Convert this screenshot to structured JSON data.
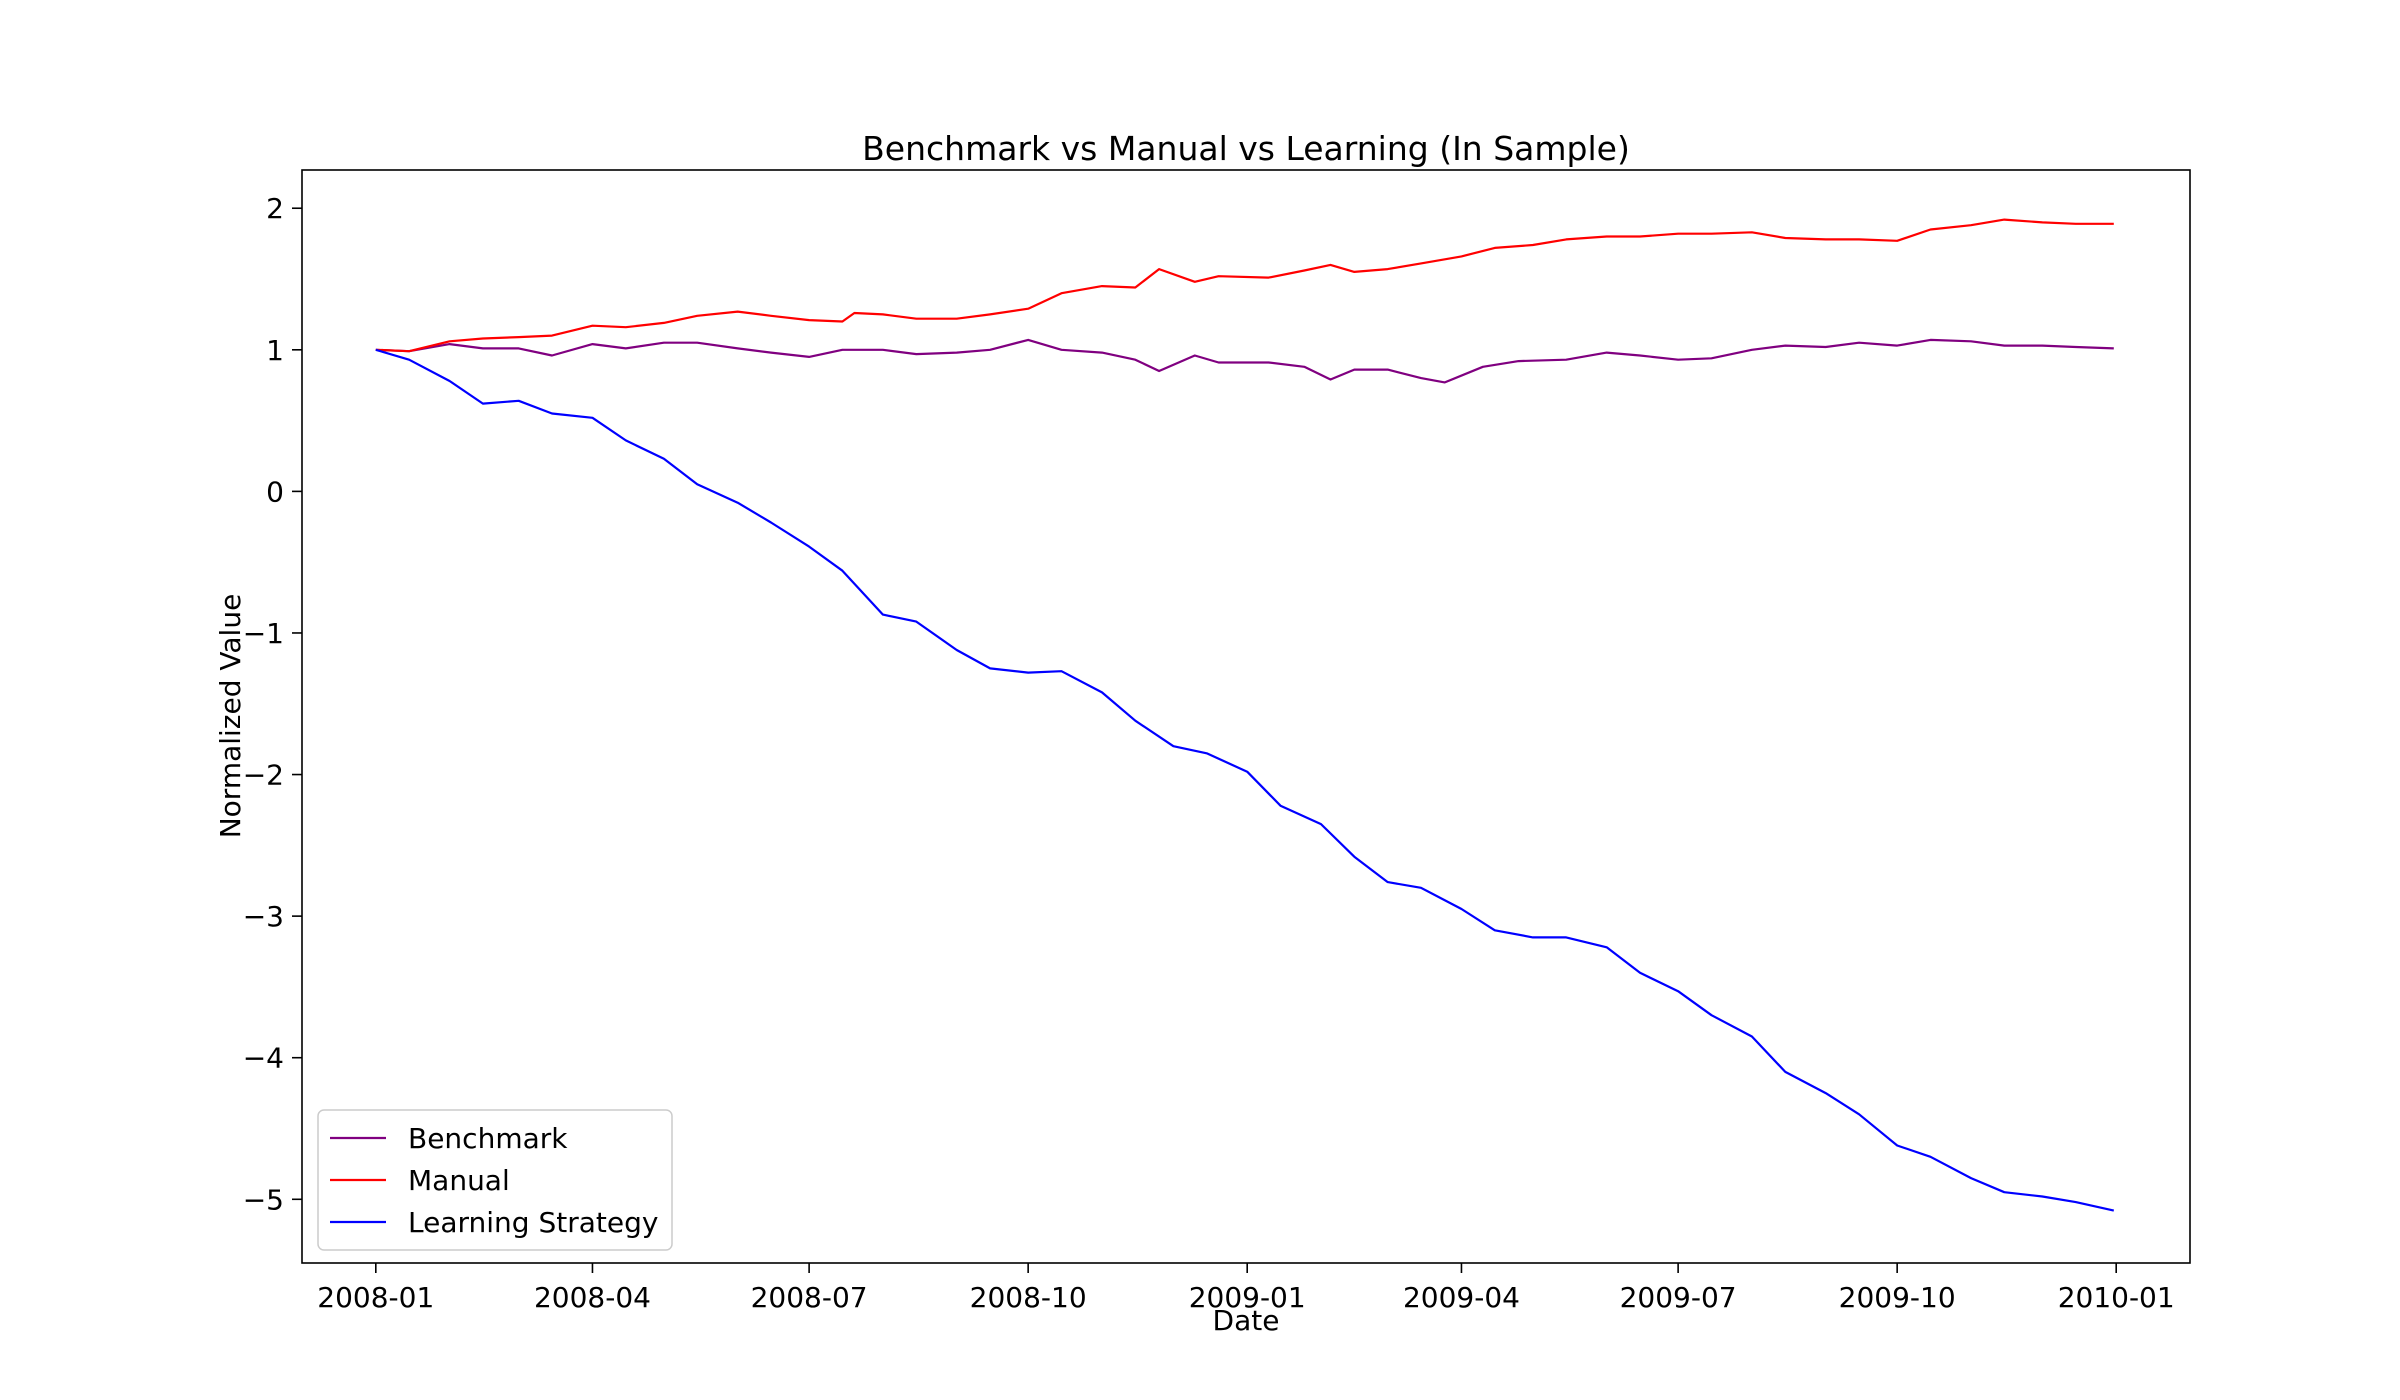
{
  "chart_data": {
    "type": "line",
    "title": "Benchmark vs Manual vs Learning (In Sample)",
    "xlabel": "Date",
    "ylabel": "Normalized Value",
    "xlim": [
      "2007-12-01",
      "2010-02-01"
    ],
    "ylim": [
      -5.45,
      2.27
    ],
    "x_ticks": [
      "2008-01",
      "2008-04",
      "2008-07",
      "2008-10",
      "2009-01",
      "2009-04",
      "2009-07",
      "2009-10",
      "2010-01"
    ],
    "y_ticks": [
      2,
      1,
      0,
      -1,
      -2,
      -3,
      -4,
      -5
    ],
    "y_tick_labels": [
      "2",
      "1",
      "0",
      "−1",
      "−2",
      "−3",
      "−4",
      "−5"
    ],
    "grid": false,
    "legend_position": "lower-left",
    "series": [
      {
        "name": "Benchmark",
        "color": "#800080",
        "points": [
          [
            "2008-01-01",
            1.0
          ],
          [
            "2008-01-15",
            0.99
          ],
          [
            "2008-02-01",
            1.04
          ],
          [
            "2008-02-15",
            1.01
          ],
          [
            "2008-03-01",
            1.01
          ],
          [
            "2008-03-15",
            0.96
          ],
          [
            "2008-04-01",
            1.04
          ],
          [
            "2008-04-15",
            1.01
          ],
          [
            "2008-05-01",
            1.05
          ],
          [
            "2008-05-15",
            1.05
          ],
          [
            "2008-06-01",
            1.01
          ],
          [
            "2008-06-15",
            0.98
          ],
          [
            "2008-07-01",
            0.95
          ],
          [
            "2008-07-15",
            1.0
          ],
          [
            "2008-08-01",
            1.0
          ],
          [
            "2008-08-15",
            0.97
          ],
          [
            "2008-09-01",
            0.98
          ],
          [
            "2008-09-15",
            1.0
          ],
          [
            "2008-10-01",
            1.07
          ],
          [
            "2008-10-15",
            1.0
          ],
          [
            "2008-11-01",
            0.98
          ],
          [
            "2008-11-15",
            0.93
          ],
          [
            "2008-11-25",
            0.85
          ],
          [
            "2008-12-10",
            0.96
          ],
          [
            "2008-12-20",
            0.91
          ],
          [
            "2009-01-10",
            0.91
          ],
          [
            "2009-01-25",
            0.88
          ],
          [
            "2009-02-05",
            0.79
          ],
          [
            "2009-02-15",
            0.86
          ],
          [
            "2009-03-01",
            0.86
          ],
          [
            "2009-03-15",
            0.8
          ],
          [
            "2009-03-25",
            0.77
          ],
          [
            "2009-04-10",
            0.88
          ],
          [
            "2009-04-25",
            0.92
          ],
          [
            "2009-05-15",
            0.93
          ],
          [
            "2009-06-01",
            0.98
          ],
          [
            "2009-06-15",
            0.96
          ],
          [
            "2009-07-01",
            0.93
          ],
          [
            "2009-07-15",
            0.94
          ],
          [
            "2009-08-01",
            1.0
          ],
          [
            "2009-08-15",
            1.03
          ],
          [
            "2009-09-01",
            1.02
          ],
          [
            "2009-09-15",
            1.05
          ],
          [
            "2009-10-01",
            1.03
          ],
          [
            "2009-10-15",
            1.07
          ],
          [
            "2009-11-01",
            1.06
          ],
          [
            "2009-11-15",
            1.03
          ],
          [
            "2009-12-01",
            1.03
          ],
          [
            "2009-12-15",
            1.02
          ],
          [
            "2009-12-31",
            1.01
          ]
        ]
      },
      {
        "name": "Manual",
        "color": "#ff0000",
        "points": [
          [
            "2008-01-01",
            1.0
          ],
          [
            "2008-01-15",
            0.99
          ],
          [
            "2008-02-01",
            1.06
          ],
          [
            "2008-02-15",
            1.08
          ],
          [
            "2008-03-01",
            1.09
          ],
          [
            "2008-03-15",
            1.1
          ],
          [
            "2008-04-01",
            1.17
          ],
          [
            "2008-04-15",
            1.16
          ],
          [
            "2008-05-01",
            1.19
          ],
          [
            "2008-05-15",
            1.24
          ],
          [
            "2008-06-01",
            1.27
          ],
          [
            "2008-06-15",
            1.24
          ],
          [
            "2008-07-01",
            1.21
          ],
          [
            "2008-07-15",
            1.2
          ],
          [
            "2008-07-20",
            1.26
          ],
          [
            "2008-08-01",
            1.25
          ],
          [
            "2008-08-15",
            1.22
          ],
          [
            "2008-09-01",
            1.22
          ],
          [
            "2008-09-15",
            1.25
          ],
          [
            "2008-10-01",
            1.29
          ],
          [
            "2008-10-15",
            1.4
          ],
          [
            "2008-11-01",
            1.45
          ],
          [
            "2008-11-15",
            1.44
          ],
          [
            "2008-11-25",
            1.57
          ],
          [
            "2008-12-10",
            1.48
          ],
          [
            "2008-12-20",
            1.52
          ],
          [
            "2009-01-10",
            1.51
          ],
          [
            "2009-01-25",
            1.56
          ],
          [
            "2009-02-05",
            1.6
          ],
          [
            "2009-02-15",
            1.55
          ],
          [
            "2009-03-01",
            1.57
          ],
          [
            "2009-03-15",
            1.61
          ],
          [
            "2009-04-01",
            1.66
          ],
          [
            "2009-04-15",
            1.72
          ],
          [
            "2009-05-01",
            1.74
          ],
          [
            "2009-05-15",
            1.78
          ],
          [
            "2009-06-01",
            1.8
          ],
          [
            "2009-06-15",
            1.8
          ],
          [
            "2009-07-01",
            1.82
          ],
          [
            "2009-07-15",
            1.82
          ],
          [
            "2009-08-01",
            1.83
          ],
          [
            "2009-08-15",
            1.79
          ],
          [
            "2009-09-01",
            1.78
          ],
          [
            "2009-09-15",
            1.78
          ],
          [
            "2009-10-01",
            1.77
          ],
          [
            "2009-10-15",
            1.85
          ],
          [
            "2009-11-01",
            1.88
          ],
          [
            "2009-11-15",
            1.92
          ],
          [
            "2009-12-01",
            1.9
          ],
          [
            "2009-12-15",
            1.89
          ],
          [
            "2009-12-31",
            1.89
          ]
        ]
      },
      {
        "name": "Learning Strategy",
        "color": "#0000ff",
        "points": [
          [
            "2008-01-01",
            1.0
          ],
          [
            "2008-01-15",
            0.93
          ],
          [
            "2008-02-01",
            0.78
          ],
          [
            "2008-02-15",
            0.62
          ],
          [
            "2008-03-01",
            0.64
          ],
          [
            "2008-03-15",
            0.55
          ],
          [
            "2008-04-01",
            0.52
          ],
          [
            "2008-04-15",
            0.36
          ],
          [
            "2008-05-01",
            0.23
          ],
          [
            "2008-05-15",
            0.05
          ],
          [
            "2008-06-01",
            -0.08
          ],
          [
            "2008-06-15",
            -0.22
          ],
          [
            "2008-07-01",
            -0.39
          ],
          [
            "2008-07-15",
            -0.56
          ],
          [
            "2008-08-01",
            -0.87
          ],
          [
            "2008-08-15",
            -0.92
          ],
          [
            "2008-09-01",
            -1.12
          ],
          [
            "2008-09-15",
            -1.25
          ],
          [
            "2008-10-01",
            -1.28
          ],
          [
            "2008-10-15",
            -1.27
          ],
          [
            "2008-11-01",
            -1.42
          ],
          [
            "2008-11-15",
            -1.62
          ],
          [
            "2008-12-01",
            -1.8
          ],
          [
            "2008-12-15",
            -1.85
          ],
          [
            "2009-01-01",
            -1.98
          ],
          [
            "2009-01-15",
            -2.22
          ],
          [
            "2009-02-01",
            -2.35
          ],
          [
            "2009-02-15",
            -2.58
          ],
          [
            "2009-03-01",
            -2.76
          ],
          [
            "2009-03-15",
            -2.8
          ],
          [
            "2009-04-01",
            -2.95
          ],
          [
            "2009-04-15",
            -3.1
          ],
          [
            "2009-05-01",
            -3.15
          ],
          [
            "2009-05-15",
            -3.15
          ],
          [
            "2009-06-01",
            -3.22
          ],
          [
            "2009-06-15",
            -3.4
          ],
          [
            "2009-07-01",
            -3.53
          ],
          [
            "2009-07-15",
            -3.7
          ],
          [
            "2009-08-01",
            -3.85
          ],
          [
            "2009-08-15",
            -4.1
          ],
          [
            "2009-09-01",
            -4.25
          ],
          [
            "2009-09-15",
            -4.4
          ],
          [
            "2009-10-01",
            -4.62
          ],
          [
            "2009-10-15",
            -4.7
          ],
          [
            "2009-11-01",
            -4.85
          ],
          [
            "2009-11-15",
            -4.95
          ],
          [
            "2009-12-01",
            -4.98
          ],
          [
            "2009-12-15",
            -5.02
          ],
          [
            "2009-12-31",
            -5.08
          ]
        ]
      }
    ]
  }
}
